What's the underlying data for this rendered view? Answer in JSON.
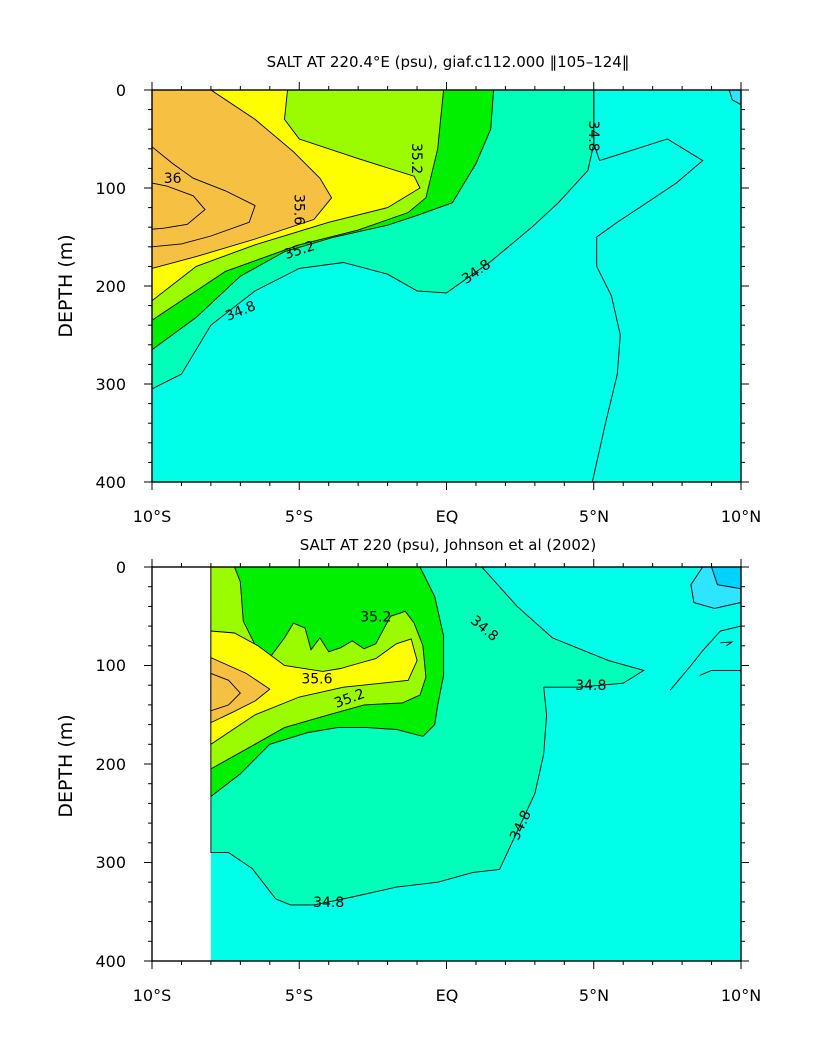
{
  "colors": {
    "salt_35_6_up": "#f6c043",
    "salt_35_4_35_6": "#fffe00",
    "salt_35_2_35_4": "#9bfb00",
    "salt_35_0_35_2": "#00f000",
    "salt_34_8_35_0": "#00ffb8",
    "salt_34_6_34_8": "#00ffe8",
    "salt_34_4_34_6": "#2ee4ff",
    "salt_below_34_4": "#00d2ff"
  },
  "chart_data": [
    {
      "type": "contour",
      "title": "SALT AT 220.4°E (psu), giaf.c112.000 ‖105–124‖",
      "xlabel": "",
      "ylabel": "DEPTH (m)",
      "x_ticks": [
        "10°S",
        "5°S",
        "EQ",
        "5°N",
        "10°N"
      ],
      "y_ticks": [
        "0",
        "100",
        "200",
        "300",
        "400"
      ],
      "xlim": [
        -10,
        10
      ],
      "ylim": [
        400,
        0
      ],
      "contour_labels": [
        "36",
        "35.6",
        "35.2",
        "35.2",
        "34.8",
        "34.8",
        "34.8"
      ],
      "levels": [
        34.4,
        34.6,
        34.8,
        35.0,
        35.2,
        35.4,
        35.6,
        36.0
      ],
      "x_start": -10,
      "regions": [
        {
          "level": 34.6,
          "poly": [
            [
              -10,
              0
            ],
            [
              10,
              0
            ],
            [
              10,
              400
            ],
            [
              -10,
              400
            ]
          ]
        },
        {
          "level": 34.8,
          "poly": [
            [
              -10,
              0
            ],
            [
              5,
              0
            ],
            [
              5,
              55
            ],
            [
              4.8,
              82
            ],
            [
              3.8,
              115
            ],
            [
              2.9,
              140
            ],
            [
              1.5,
              175
            ],
            [
              0,
              207
            ],
            [
              -1,
              205
            ],
            [
              -2,
              188
            ],
            [
              -3.5,
              176
            ],
            [
              -5,
              182
            ],
            [
              -6.5,
              205
            ],
            [
              -8,
              240
            ],
            [
              -9,
              290
            ],
            [
              -10,
              305
            ]
          ]
        },
        {
          "level": 35.0,
          "poly": [
            [
              -10,
              0
            ],
            [
              1.6,
              0
            ],
            [
              1.5,
              40
            ],
            [
              1.0,
              75
            ],
            [
              0.2,
              115
            ],
            [
              -1,
              128
            ],
            [
              -2,
              138
            ],
            [
              -3.8,
              150
            ],
            [
              -5.5,
              165
            ],
            [
              -7,
              190
            ],
            [
              -8.5,
              232
            ],
            [
              -10,
              265
            ]
          ]
        },
        {
          "level": 35.2,
          "poly": [
            [
              -10,
              0
            ],
            [
              -0.1,
              0
            ],
            [
              -0.2,
              30
            ],
            [
              -0.3,
              60
            ],
            [
              -0.7,
              110
            ],
            [
              -1.3,
              125
            ],
            [
              -3,
              143
            ],
            [
              -5,
              158
            ],
            [
              -7.5,
              185
            ],
            [
              -10,
              235
            ]
          ]
        },
        {
          "level": 35.4,
          "poly": [
            [
              -10,
              0
            ],
            [
              -5.4,
              0
            ],
            [
              -5.5,
              30
            ],
            [
              -5,
              50
            ],
            [
              -3,
              70
            ],
            [
              -1.1,
              88
            ],
            [
              -0.9,
              100
            ],
            [
              -2,
              120
            ],
            [
              -4,
              135
            ],
            [
              -6.5,
              158
            ],
            [
              -8.5,
              180
            ],
            [
              -10,
              215
            ]
          ]
        },
        {
          "level": 35.6,
          "poly": [
            [
              -10,
              0
            ],
            [
              -8,
              0
            ],
            [
              -6.5,
              30
            ],
            [
              -5.2,
              63
            ],
            [
              -4.3,
              90
            ],
            [
              -3.9,
              110
            ],
            [
              -4.5,
              132
            ],
            [
              -6.5,
              152
            ],
            [
              -8.5,
              170
            ],
            [
              -10,
              182
            ]
          ]
        },
        {
          "level": 36.0,
          "poly": [
            [
              -10,
              58
            ],
            [
              -9.3,
              75
            ],
            [
              -8.6,
              90
            ],
            [
              -7.5,
              103
            ],
            [
              -6.5,
              118
            ],
            [
              -6.7,
              135
            ],
            [
              -8,
              149
            ],
            [
              -9,
              157
            ],
            [
              -10,
              160
            ]
          ]
        },
        {
          "level": 36.2,
          "poly": [
            [
              -10,
              95
            ],
            [
              -9.5,
              98
            ],
            [
              -8.6,
              108
            ],
            [
              -8.2,
              122
            ],
            [
              -8.8,
              137
            ],
            [
              -9.6,
              141
            ],
            [
              -10,
              142
            ]
          ]
        },
        {
          "level": 34.4,
          "poly": [
            [
              10,
              0
            ],
            [
              9.6,
              0
            ],
            [
              9.7,
              10
            ],
            [
              10,
              15
            ]
          ]
        }
      ],
      "lines": [
        {
          "points": [
            [
              5,
              0
            ],
            [
              5,
              55
            ],
            [
              5.2,
              72
            ],
            [
              7.5,
              50
            ],
            [
              8.7,
              72
            ],
            [
              7.8,
              95
            ],
            [
              6.8,
              115
            ],
            [
              5.8,
              135
            ],
            [
              5.1,
              150
            ],
            [
              5.1,
              180
            ],
            [
              5.6,
              210
            ],
            [
              5.9,
              250
            ],
            [
              5.8,
              290
            ],
            [
              5.4,
              340
            ],
            [
              4.95,
              400
            ]
          ]
        }
      ],
      "label_positions": [
        {
          "text": "36",
          "x": -9.3,
          "y": 90
        },
        {
          "text": "35.6",
          "x": -5.0,
          "y": 122,
          "rot": 90
        },
        {
          "text": "35.2",
          "x": -1.0,
          "y": 70,
          "rot": 90
        },
        {
          "text": "35.2",
          "x": -5.0,
          "y": 163,
          "rot": -18
        },
        {
          "text": "34.8",
          "x": -7.0,
          "y": 225,
          "rot": -22
        },
        {
          "text": "34.8",
          "x": 1.0,
          "y": 185,
          "rot": -35
        },
        {
          "text": "34.8",
          "x": 5.0,
          "y": 47,
          "rot": 90
        }
      ]
    },
    {
      "type": "contour",
      "title": "SALT AT 220 (psu), Johnson et al (2002)",
      "xlabel": "",
      "ylabel": "DEPTH (m)",
      "x_ticks": [
        "10°S",
        "5°S",
        "EQ",
        "5°N",
        "10°N"
      ],
      "y_ticks": [
        "0",
        "100",
        "200",
        "300",
        "400"
      ],
      "xlim": [
        -10,
        10
      ],
      "ylim": [
        400,
        0
      ],
      "contour_labels": [
        "35.2",
        "35.6",
        "35.2",
        "34.8",
        "34.8",
        "34.8",
        "34.8"
      ],
      "levels": [
        34.4,
        34.6,
        34.8,
        35.0,
        35.2,
        35.4,
        35.6,
        36.0
      ],
      "x_start": -8,
      "regions": [
        {
          "level": 34.6,
          "poly": [
            [
              -8,
              0
            ],
            [
              10,
              0
            ],
            [
              10,
              400
            ],
            [
              -8,
              400
            ]
          ]
        },
        {
          "level": 34.8,
          "poly": [
            [
              -8,
              0
            ],
            [
              1.2,
              0
            ],
            [
              2.4,
              40
            ],
            [
              3.6,
              72
            ],
            [
              5.5,
              95
            ],
            [
              6.7,
              105
            ],
            [
              6.0,
              118
            ],
            [
              4.5,
              122
            ],
            [
              3.3,
              122
            ],
            [
              3.4,
              150
            ],
            [
              3.3,
              190
            ],
            [
              3.0,
              230
            ],
            [
              2.3,
              275
            ],
            [
              1.8,
              307
            ],
            [
              0.9,
              310
            ],
            [
              -0.3,
              320
            ],
            [
              -1.7,
              325
            ],
            [
              -3.2,
              335
            ],
            [
              -4.5,
              343
            ],
            [
              -5.3,
              343
            ],
            [
              -5.8,
              337
            ],
            [
              -6.6,
              306
            ],
            [
              -7.4,
              290
            ],
            [
              -8,
              290
            ]
          ]
        },
        {
          "level": 35.0,
          "poly": [
            [
              -8,
              0
            ],
            [
              -0.9,
              0
            ],
            [
              -0.4,
              30
            ],
            [
              -0.1,
              70
            ],
            [
              -0.1,
              110
            ],
            [
              -0.3,
              140
            ],
            [
              -0.4,
              160
            ],
            [
              -0.8,
              172
            ],
            [
              -1.7,
              165
            ],
            [
              -2.7,
              163
            ],
            [
              -3.7,
              163
            ],
            [
              -4.7,
              168
            ],
            [
              -6,
              180
            ],
            [
              -7,
              210
            ],
            [
              -8,
              233
            ]
          ]
        },
        {
          "level": 35.2,
          "poly": [
            [
              -8,
              0
            ],
            [
              -7.2,
              0
            ],
            [
              -7.0,
              15
            ],
            [
              -6.9,
              55
            ],
            [
              -6.4,
              85
            ],
            [
              -6.0,
              92
            ],
            [
              -5.5,
              72
            ],
            [
              -5.2,
              57
            ],
            [
              -4.8,
              62
            ],
            [
              -4.6,
              84
            ],
            [
              -4.3,
              72
            ],
            [
              -4.0,
              86
            ],
            [
              -3.6,
              82
            ],
            [
              -3.2,
              75
            ],
            [
              -2.8,
              83
            ],
            [
              -2.4,
              78
            ],
            [
              -1.9,
              50
            ],
            [
              -1.4,
              45
            ],
            [
              -1.1,
              57
            ],
            [
              -0.8,
              80
            ],
            [
              -0.7,
              112
            ],
            [
              -0.9,
              130
            ],
            [
              -1.5,
              138
            ],
            [
              -2.8,
              140
            ],
            [
              -4,
              150
            ],
            [
              -5.5,
              163
            ],
            [
              -6.8,
              185
            ],
            [
              -8,
              205
            ]
          ]
        },
        {
          "level": 35.4,
          "poly": [
            [
              -8,
              65
            ],
            [
              -7.2,
              67
            ],
            [
              -6.4,
              80
            ],
            [
              -5.5,
              100
            ],
            [
              -4.2,
              106
            ],
            [
              -3.6,
              103
            ],
            [
              -3.0,
              98
            ],
            [
              -2.4,
              93
            ],
            [
              -1.7,
              78
            ],
            [
              -1.2,
              73
            ],
            [
              -1.0,
              95
            ],
            [
              -1.3,
              115
            ],
            [
              -2.2,
              118
            ],
            [
              -3.5,
              122
            ],
            [
              -5,
              132
            ],
            [
              -6.5,
              150
            ],
            [
              -8,
              180
            ]
          ]
        },
        {
          "level": 35.6,
          "poly": [
            [
              -8,
              92
            ],
            [
              -6.8,
              108
            ],
            [
              -6.0,
              124
            ],
            [
              -6.5,
              136
            ],
            [
              -7.3,
              148
            ],
            [
              -8,
              158
            ]
          ]
        },
        {
          "level": 36.0,
          "poly": [
            [
              -8,
              108
            ],
            [
              -7.4,
              115
            ],
            [
              -7.0,
              128
            ],
            [
              -7.4,
              140
            ],
            [
              -8,
              146
            ]
          ]
        },
        {
          "level": 34.4,
          "poly": [
            [
              10,
              0
            ],
            [
              8.7,
              0
            ],
            [
              8.3,
              18
            ],
            [
              8.4,
              36
            ],
            [
              9.1,
              42
            ],
            [
              10,
              36
            ]
          ]
        },
        {
          "level": 34.2,
          "poly": [
            [
              10,
              0
            ],
            [
              9.0,
              0
            ],
            [
              9.2,
              18
            ],
            [
              10,
              22
            ]
          ]
        }
      ],
      "lines": [
        {
          "points": [
            [
              7.6,
              125
            ],
            [
              8.3,
              100
            ],
            [
              8.7,
              85
            ],
            [
              9.3,
              65
            ],
            [
              10,
              60
            ]
          ]
        },
        {
          "points": [
            [
              10,
              105
            ],
            [
              9,
              105
            ],
            [
              8.6,
              110
            ]
          ]
        },
        {
          "points": [
            [
              9.3,
              77
            ],
            [
              9.7,
              76
            ],
            [
              9.5,
              80
            ]
          ]
        }
      ],
      "label_positions": [
        {
          "text": "35.2",
          "x": -2.4,
          "y": 50
        },
        {
          "text": "35.6",
          "x": -4.4,
          "y": 113
        },
        {
          "text": "35.2",
          "x": -3.3,
          "y": 133,
          "rot": -20
        },
        {
          "text": "34.8",
          "x": 1.3,
          "y": 62,
          "rot": 40
        },
        {
          "text": "34.8",
          "x": 4.9,
          "y": 120
        },
        {
          "text": "34.8",
          "x": 2.5,
          "y": 262,
          "rot": -65
        },
        {
          "text": "34.8",
          "x": -4.0,
          "y": 340
        }
      ]
    }
  ]
}
